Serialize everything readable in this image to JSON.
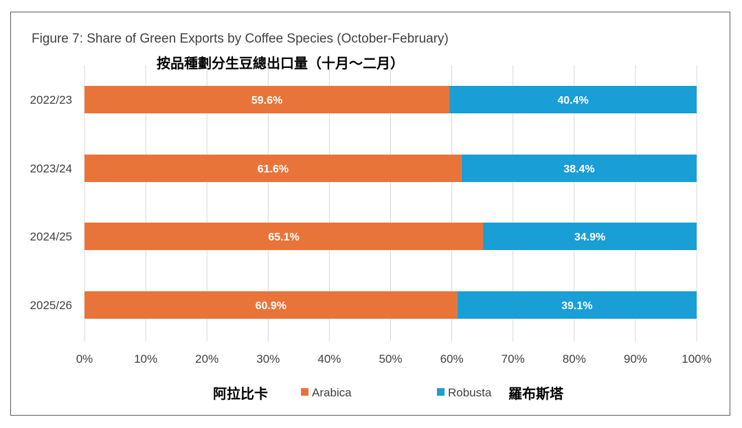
{
  "chart_data": {
    "type": "bar",
    "orientation": "horizontal",
    "stacked": true,
    "title": "Figure 7: Share of Green Exports by Coffee Species (October-February)",
    "subtitle": "按品種劃分生豆總出口量（十月～二月）",
    "categories": [
      "2022/23",
      "2023/24",
      "2024/25",
      "2025/26"
    ],
    "series": [
      {
        "name": "Arabica",
        "name_zh": "阿拉比卡",
        "color": "#E9743A",
        "values": [
          59.6,
          61.6,
          65.1,
          60.9
        ],
        "labels": [
          "59.6%",
          "61.6%",
          "65.1%",
          "60.9%"
        ]
      },
      {
        "name": "Robusta",
        "name_zh": "羅布斯塔",
        "color": "#1A9ED6",
        "values": [
          40.4,
          38.4,
          34.9,
          39.1
        ],
        "labels": [
          "40.4%",
          "38.4%",
          "34.9%",
          "39.1%"
        ]
      }
    ],
    "xlim": [
      0,
      100
    ],
    "xticks": [
      "0%",
      "10%",
      "20%",
      "30%",
      "40%",
      "50%",
      "60%",
      "70%",
      "80%",
      "90%",
      "100%"
    ],
    "grid": "vertical",
    "legend_position": "bottom"
  }
}
